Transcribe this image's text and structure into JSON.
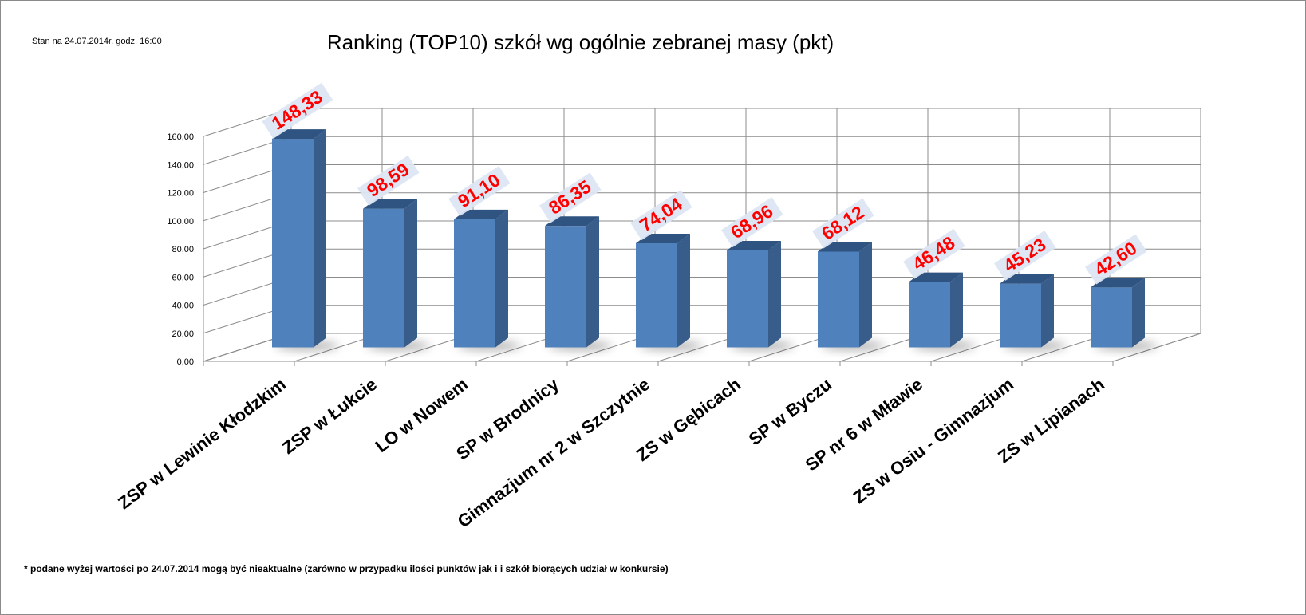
{
  "stamp": "Stan na 24.07.2014r.  godz. 16:00",
  "note": "* podane wyżej wartości po 24.07.2014  mogą być nieaktualne (zarówno w przypadku ilości punktów jak i i szkół biorących udział w konkursie)",
  "colors": {
    "bar_front": "#4f81bd",
    "bar_side": "#385d8a",
    "bar_top": "#2f5481",
    "label": "#ff0000",
    "label_bg": "#dce6f2",
    "grid": "#8c8c8c"
  },
  "chart_data": {
    "type": "bar",
    "title": "Ranking (TOP10) szkół wg ogólnie zebranej masy (pkt)",
    "categories": [
      "ZSP w Lewinie Kłodzkim",
      "ZSP w Łukcie",
      "LO w Nowem",
      "SP w Brodnicy",
      "Gimnazjum nr 2 w Szczytnie",
      "ZS w Gębicach",
      "SP w Byczu",
      "SP nr 6 w Mławie",
      "ZS w Osiu - Gimnazjum",
      "ZS w Lipianach"
    ],
    "values": [
      148.33,
      98.59,
      91.1,
      86.35,
      74.04,
      68.96,
      68.12,
      46.48,
      45.23,
      42.6
    ],
    "data_labels": [
      "148,33",
      "98,59",
      "91,10",
      "86,35",
      "74,04",
      "68,96",
      "68,12",
      "46,48",
      "45,23",
      "42,60"
    ],
    "yticks": [
      "0,00",
      "20,00",
      "40,00",
      "60,00",
      "80,00",
      "100,00",
      "120,00",
      "140,00",
      "160,00"
    ],
    "ylim": [
      0,
      160
    ],
    "gridlines": true,
    "legend": "none",
    "style": "3d"
  }
}
